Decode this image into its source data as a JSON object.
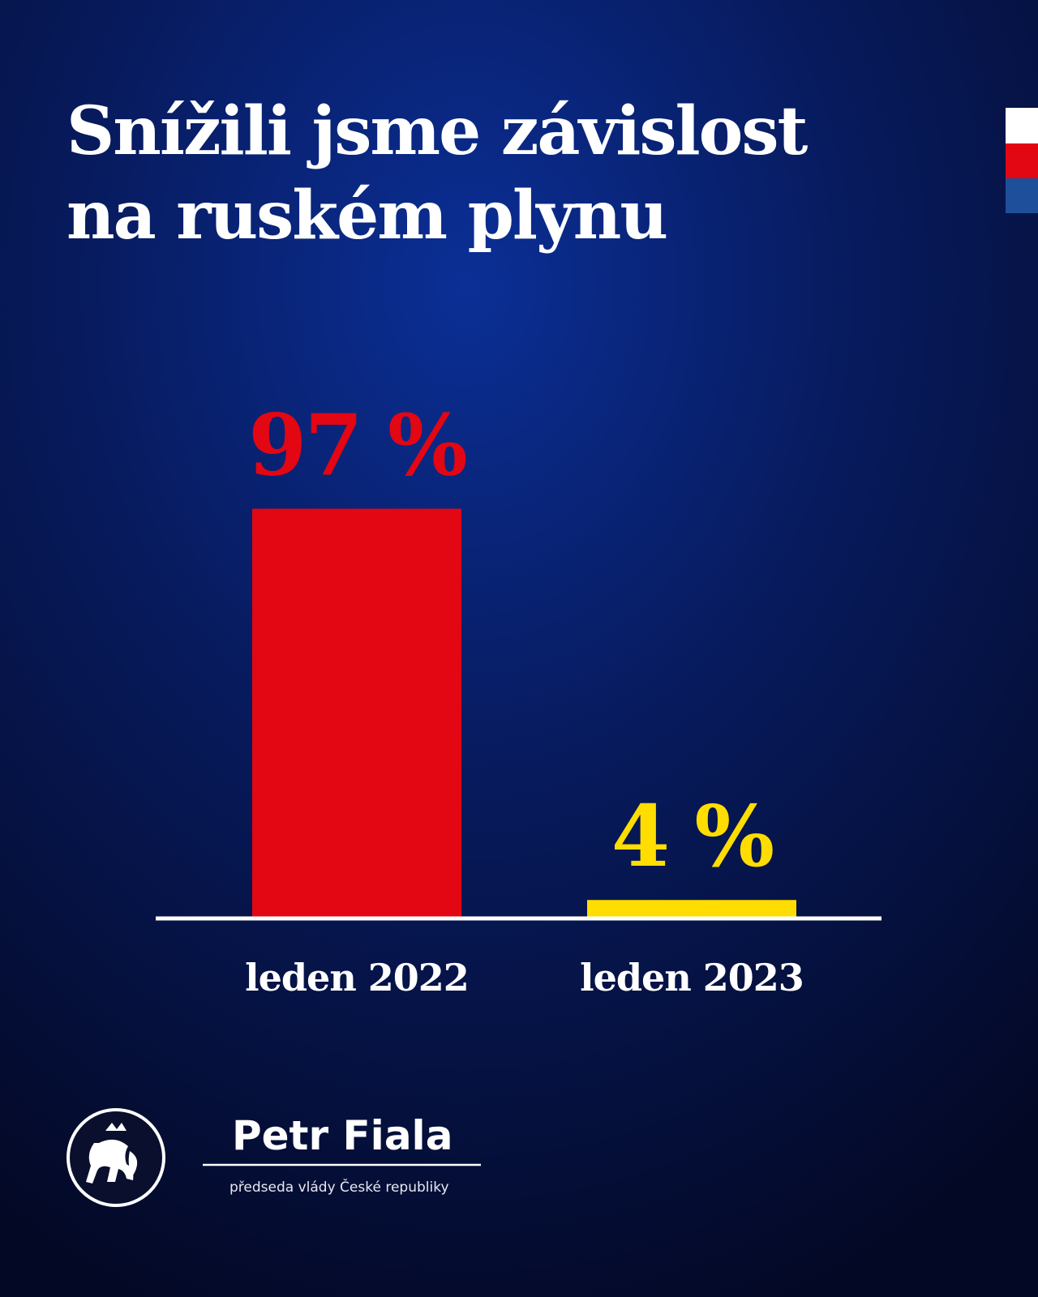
{
  "chart_data": {
    "type": "bar",
    "title": [
      "Snížili jsme závislost",
      "na ruském plynu"
    ],
    "categories": [
      "leden 2022",
      "leden 2023"
    ],
    "values": [
      97,
      4
    ],
    "value_labels": [
      "97 %",
      "4 %"
    ],
    "colors": [
      "#e30613",
      "#ffdd00"
    ],
    "ylim": [
      0,
      100
    ]
  },
  "footer": {
    "name": "Petr Fiala",
    "role": "předseda vlády České republiky"
  }
}
